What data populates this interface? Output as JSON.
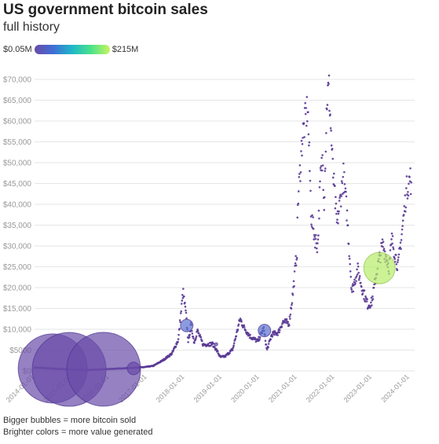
{
  "header": {
    "title": "US government bitcoin sales",
    "subtitle": "full history"
  },
  "legend": {
    "min_label": "$0.05M",
    "max_label": "$215M",
    "gradient_colors": [
      "#6a4ba8",
      "#3f6fd6",
      "#1fb8c8",
      "#4be28a",
      "#c8f560"
    ]
  },
  "notes": {
    "line1": "Bigger bubbles = more bitcoin sold",
    "line2": "Brighter colors = more value generated"
  },
  "colors": {
    "price_dots": "#5a3a96",
    "bubble_purple": "#6a4ba8",
    "bubble_blue": "#5b6fd0",
    "bubble_green": "#b7ec6a",
    "grid": "#e6e6e6",
    "axis_text": "#999999"
  },
  "chart_data": {
    "type": "scatter",
    "title": "US government bitcoin sales",
    "subtitle": "full history",
    "xlabel": "",
    "ylabel": "",
    "x_range": [
      "2014-01-01",
      "2024-01-20"
    ],
    "ylim": [
      0,
      70000
    ],
    "grid": true,
    "y_ticks": [
      0,
      5000,
      10000,
      15000,
      20000,
      25000,
      30000,
      35000,
      40000,
      45000,
      50000,
      55000,
      60000,
      65000,
      70000
    ],
    "y_tick_labels": [
      "$0",
      "$5000",
      "$10,000",
      "$15,000",
      "$20,000",
      "$25,000",
      "$30,000",
      "$35,000",
      "$40,000",
      "$45,000",
      "$50,000",
      "$55,000",
      "$60,000",
      "$65,000",
      "$70,000"
    ],
    "x_tick_labels": [
      "2014-01-01",
      "2015-01-01",
      "2016-01-01",
      "2017-01-01",
      "2018-01-01",
      "2019-01-01",
      "2020-01-01",
      "2021-01-01",
      "2022-01-01",
      "2023-01-01",
      "2024-01-01"
    ],
    "price_series": {
      "name": "",
      "points": [
        [
          "2014-01-01",
          800
        ],
        [
          "2014-06-01",
          600
        ],
        [
          "2014-12-01",
          350
        ],
        [
          "2015-06-01",
          230
        ],
        [
          "2015-12-01",
          420
        ],
        [
          "2016-06-01",
          650
        ],
        [
          "2016-12-01",
          900
        ],
        [
          "2017-03-01",
          1200
        ],
        [
          "2017-06-01",
          2500
        ],
        [
          "2017-09-01",
          4200
        ],
        [
          "2017-11-01",
          7500
        ],
        [
          "2017-12-17",
          19000
        ],
        [
          "2018-01-15",
          13500
        ],
        [
          "2018-02-06",
          7000
        ],
        [
          "2018-03-05",
          11000
        ],
        [
          "2018-04-05",
          6800
        ],
        [
          "2018-05-05",
          9700
        ],
        [
          "2018-07-01",
          6300
        ],
        [
          "2018-10-01",
          6500
        ],
        [
          "2018-11-20",
          4500
        ],
        [
          "2018-12-15",
          3300
        ],
        [
          "2019-02-01",
          3500
        ],
        [
          "2019-04-15",
          5200
        ],
        [
          "2019-06-26",
          12500
        ],
        [
          "2019-08-01",
          10500
        ],
        [
          "2019-10-01",
          8300
        ],
        [
          "2019-12-15",
          7100
        ],
        [
          "2020-02-10",
          10200
        ],
        [
          "2020-03-13",
          5000
        ],
        [
          "2020-05-01",
          8800
        ],
        [
          "2020-07-01",
          9200
        ],
        [
          "2020-08-15",
          11800
        ],
        [
          "2020-10-15",
          11500
        ],
        [
          "2020-11-20",
          18500
        ],
        [
          "2020-12-31",
          29000
        ],
        [
          "2021-01-08",
          40000
        ],
        [
          "2021-02-20",
          56000
        ],
        [
          "2021-04-14",
          63500
        ],
        [
          "2021-05-19",
          37000
        ],
        [
          "2021-06-22",
          32000
        ],
        [
          "2021-07-20",
          30000
        ],
        [
          "2021-08-15",
          46000
        ],
        [
          "2021-09-07",
          51000
        ],
        [
          "2021-09-21",
          41000
        ],
        [
          "2021-10-20",
          66000
        ],
        [
          "2021-11-08",
          67500
        ],
        [
          "2021-12-15",
          48000
        ],
        [
          "2022-01-24",
          35000
        ],
        [
          "2022-03-28",
          47000
        ],
        [
          "2022-05-01",
          38000
        ],
        [
          "2022-06-18",
          19000
        ],
        [
          "2022-08-13",
          24400
        ],
        [
          "2022-10-01",
          19400
        ],
        [
          "2022-11-21",
          15800
        ],
        [
          "2022-12-31",
          16600
        ],
        [
          "2023-02-15",
          24000
        ],
        [
          "2023-04-14",
          30400
        ],
        [
          "2023-06-15",
          25000
        ],
        [
          "2023-07-13",
          31500
        ],
        [
          "2023-09-11",
          25000
        ],
        [
          "2023-10-24",
          34500
        ],
        [
          "2023-12-05",
          44000
        ],
        [
          "2024-01-11",
          46500
        ],
        [
          "2024-01-20",
          41600
        ]
      ]
    },
    "sales_bubbles": [
      {
        "date": "2014-06-27",
        "price": 590,
        "bitcoin_sold_rank": 4,
        "value_usd_millions": 17
      },
      {
        "date": "2014-12-04",
        "price": 370,
        "bitcoin_sold_rank": 5,
        "value_usd_millions": 19
      },
      {
        "date": "2015-11-05",
        "price": 400,
        "bitcoin_sold_rank": 5,
        "value_usd_millions": 20
      },
      {
        "date": "2016-08-22",
        "price": 580,
        "bitcoin_sold_rank": 1,
        "value_usd_millions": 1
      },
      {
        "date": "2018-01-22",
        "price": 10900,
        "bitcoin_sold_rank": 1,
        "value_usd_millions": 35
      },
      {
        "date": "2018-11-05",
        "price": 6400,
        "bitcoin_sold_rank": 0,
        "value_usd_millions": 1
      },
      {
        "date": "2020-02-18",
        "price": 9700,
        "bitcoin_sold_rank": 1,
        "value_usd_millions": 30
      },
      {
        "date": "2023-03-14",
        "price": 24700,
        "bitcoin_sold_rank": 2,
        "value_usd_millions": 215
      }
    ]
  }
}
